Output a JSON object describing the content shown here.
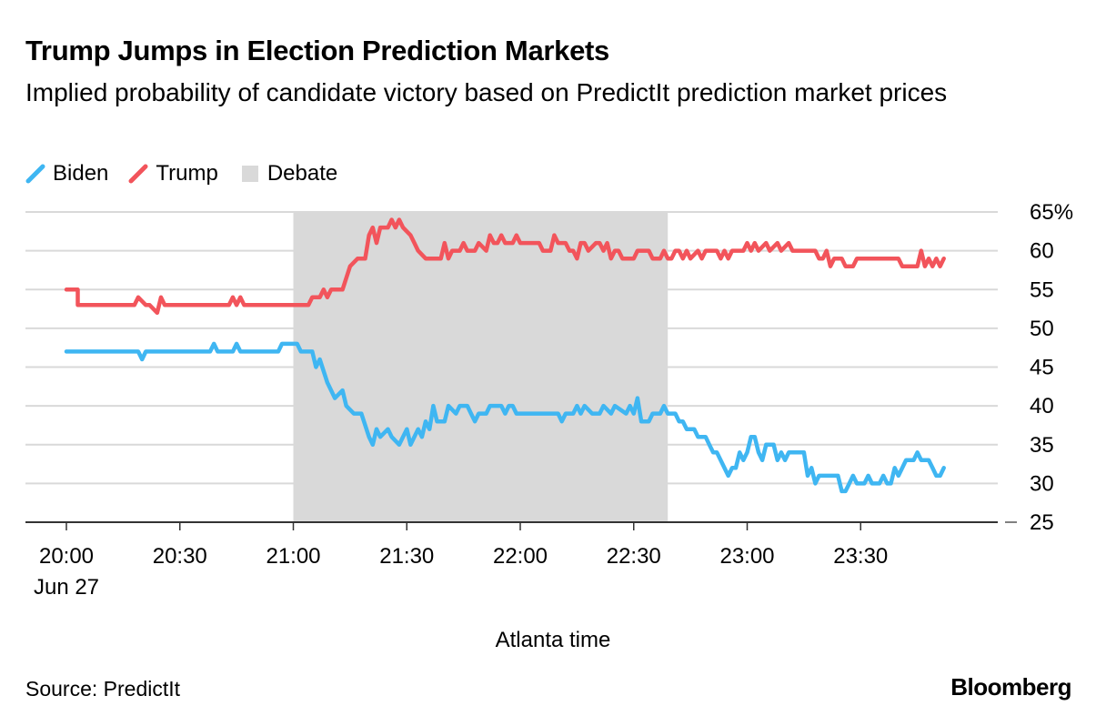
{
  "title": "Trump Jumps in Election Prediction Markets",
  "subtitle": "Implied probability of candidate victory based on PredictIt prediction market prices",
  "legend": {
    "biden": "Biden",
    "trump": "Trump",
    "debate": "Debate"
  },
  "source": "Source: PredictIt",
  "brand": "Bloomberg",
  "colors": {
    "biden": "#3fb6f2",
    "trump": "#f2545b",
    "debate": "#d9d9d9",
    "grid": "#d9d9d9"
  },
  "chart_data": {
    "type": "line",
    "title": "Trump Jumps in Election Prediction Markets",
    "xlabel": "Atlanta time",
    "ylabel": "",
    "xlim": [
      "19:49",
      "24:13"
    ],
    "ylim": [
      25,
      65
    ],
    "x_ticks": [
      "20:00",
      "20:30",
      "21:00",
      "21:30",
      "22:00",
      "22:30",
      "23:00",
      "23:30"
    ],
    "x_tick_sublabel": {
      "20:00": "Jun 27"
    },
    "y_ticks": [
      25,
      30,
      35,
      40,
      45,
      50,
      55,
      60,
      65
    ],
    "y_tick_labels": [
      "25",
      "30",
      "35",
      "40",
      "45",
      "50",
      "55",
      "60",
      "65%"
    ],
    "grid": true,
    "shaded_region": {
      "label": "Debate",
      "start": "21:00",
      "end": "22:39"
    },
    "series": [
      {
        "name": "Biden",
        "color": "#3fb6f2",
        "points": [
          [
            "20:00",
            47
          ],
          [
            "20:19",
            47
          ],
          [
            "20:20",
            46
          ],
          [
            "20:21",
            47
          ],
          [
            "20:38",
            47
          ],
          [
            "20:39",
            48
          ],
          [
            "20:40",
            47
          ],
          [
            "20:44",
            47
          ],
          [
            "20:45",
            48
          ],
          [
            "20:46",
            47
          ],
          [
            "20:56",
            47
          ],
          [
            "20:57",
            48
          ],
          [
            "21:01",
            48
          ],
          [
            "21:02",
            47
          ],
          [
            "21:05",
            47
          ],
          [
            "21:06",
            45
          ],
          [
            "21:07",
            46
          ],
          [
            "21:09",
            43
          ],
          [
            "21:11",
            41
          ],
          [
            "21:13",
            42
          ],
          [
            "21:14",
            40
          ],
          [
            "21:16",
            39
          ],
          [
            "21:18",
            39
          ],
          [
            "21:20",
            36
          ],
          [
            "21:21",
            35
          ],
          [
            "21:22",
            37
          ],
          [
            "21:23",
            36
          ],
          [
            "21:25",
            37
          ],
          [
            "21:26",
            36
          ],
          [
            "21:28",
            35
          ],
          [
            "21:30",
            37
          ],
          [
            "21:31",
            35
          ],
          [
            "21:33",
            37
          ],
          [
            "21:34",
            36
          ],
          [
            "21:35",
            38
          ],
          [
            "21:36",
            37
          ],
          [
            "21:37",
            40
          ],
          [
            "21:38",
            38
          ],
          [
            "21:40",
            38
          ],
          [
            "21:41",
            40
          ],
          [
            "21:43",
            39
          ],
          [
            "21:44",
            40
          ],
          [
            "21:46",
            40
          ],
          [
            "21:47",
            39
          ],
          [
            "21:48",
            38
          ],
          [
            "21:49",
            39
          ],
          [
            "21:51",
            39
          ],
          [
            "21:52",
            40
          ],
          [
            "21:55",
            40
          ],
          [
            "21:56",
            39
          ],
          [
            "21:57",
            40
          ],
          [
            "21:58",
            40
          ],
          [
            "21:59",
            39
          ],
          [
            "22:00",
            39
          ],
          [
            "22:10",
            39
          ],
          [
            "22:11",
            38
          ],
          [
            "22:12",
            39
          ],
          [
            "22:14",
            39
          ],
          [
            "22:15",
            40
          ],
          [
            "22:16",
            39
          ],
          [
            "22:17",
            40
          ],
          [
            "22:19",
            39
          ],
          [
            "22:21",
            39
          ],
          [
            "22:22",
            40
          ],
          [
            "22:24",
            39
          ],
          [
            "22:25",
            40
          ],
          [
            "22:28",
            39
          ],
          [
            "22:29",
            40
          ],
          [
            "22:30",
            39
          ],
          [
            "22:31",
            41
          ],
          [
            "22:32",
            38
          ],
          [
            "22:34",
            38
          ],
          [
            "22:35",
            39
          ],
          [
            "22:37",
            39
          ],
          [
            "22:38",
            40
          ],
          [
            "22:39",
            39
          ],
          [
            "22:41",
            39
          ],
          [
            "22:42",
            38
          ],
          [
            "22:43",
            38
          ],
          [
            "22:44",
            37
          ],
          [
            "22:46",
            37
          ],
          [
            "22:47",
            36
          ],
          [
            "22:49",
            36
          ],
          [
            "22:50",
            35
          ],
          [
            "22:51",
            34
          ],
          [
            "22:52",
            34
          ],
          [
            "22:55",
            31
          ],
          [
            "22:56",
            32
          ],
          [
            "22:57",
            32
          ],
          [
            "22:58",
            34
          ],
          [
            "22:59",
            33
          ],
          [
            "23:00",
            34
          ],
          [
            "23:01",
            36
          ],
          [
            "23:02",
            36
          ],
          [
            "23:03",
            34
          ],
          [
            "23:04",
            33
          ],
          [
            "23:05",
            35
          ],
          [
            "23:07",
            35
          ],
          [
            "23:08",
            33
          ],
          [
            "23:09",
            34
          ],
          [
            "23:10",
            33
          ],
          [
            "23:11",
            34
          ],
          [
            "23:15",
            34
          ],
          [
            "23:16",
            31
          ],
          [
            "23:17",
            32
          ],
          [
            "23:18",
            30
          ],
          [
            "23:19",
            31
          ],
          [
            "23:24",
            31
          ],
          [
            "23:25",
            29
          ],
          [
            "23:26",
            29
          ],
          [
            "23:27",
            30
          ],
          [
            "23:28",
            31
          ],
          [
            "23:29",
            30
          ],
          [
            "23:31",
            30
          ],
          [
            "23:32",
            31
          ],
          [
            "23:33",
            30
          ],
          [
            "23:35",
            30
          ],
          [
            "23:36",
            31
          ],
          [
            "23:37",
            30
          ],
          [
            "23:38",
            30
          ],
          [
            "23:39",
            32
          ],
          [
            "23:40",
            31
          ],
          [
            "23:41",
            32
          ],
          [
            "23:42",
            33
          ],
          [
            "23:44",
            33
          ],
          [
            "23:45",
            34
          ],
          [
            "23:46",
            33
          ],
          [
            "23:48",
            33
          ],
          [
            "23:49",
            32
          ],
          [
            "23:50",
            31
          ],
          [
            "23:51",
            31
          ],
          [
            "23:52",
            32
          ]
        ]
      },
      {
        "name": "Trump",
        "color": "#f2545b",
        "points": [
          [
            "20:00",
            55
          ],
          [
            "20:03",
            55
          ],
          [
            "20:03",
            53
          ],
          [
            "20:18",
            53
          ],
          [
            "20:19",
            54
          ],
          [
            "20:21",
            53
          ],
          [
            "20:22",
            53
          ],
          [
            "20:24",
            52
          ],
          [
            "20:25",
            54
          ],
          [
            "20:26",
            53
          ],
          [
            "20:43",
            53
          ],
          [
            "20:44",
            54
          ],
          [
            "20:45",
            53
          ],
          [
            "20:46",
            54
          ],
          [
            "20:47",
            53
          ],
          [
            "21:04",
            53
          ],
          [
            "21:05",
            54
          ],
          [
            "21:07",
            54
          ],
          [
            "21:08",
            55
          ],
          [
            "21:09",
            54
          ],
          [
            "21:10",
            55
          ],
          [
            "21:13",
            55
          ],
          [
            "21:15",
            58
          ],
          [
            "21:17",
            59
          ],
          [
            "21:19",
            59
          ],
          [
            "21:20",
            62
          ],
          [
            "21:21",
            63
          ],
          [
            "21:22",
            61
          ],
          [
            "21:23",
            63
          ],
          [
            "21:25",
            63
          ],
          [
            "21:26",
            64
          ],
          [
            "21:27",
            63
          ],
          [
            "21:28",
            64
          ],
          [
            "21:29",
            63
          ],
          [
            "21:31",
            62
          ],
          [
            "21:32",
            61
          ],
          [
            "21:33",
            60
          ],
          [
            "21:35",
            59
          ],
          [
            "21:39",
            59
          ],
          [
            "21:40",
            61
          ],
          [
            "21:41",
            59
          ],
          [
            "21:42",
            60
          ],
          [
            "21:44",
            60
          ],
          [
            "21:45",
            61
          ],
          [
            "21:46",
            60
          ],
          [
            "21:48",
            60
          ],
          [
            "21:49",
            61
          ],
          [
            "21:51",
            60
          ],
          [
            "21:52",
            62
          ],
          [
            "21:53",
            61
          ],
          [
            "21:54",
            61
          ],
          [
            "21:55",
            62
          ],
          [
            "21:56",
            61
          ],
          [
            "21:58",
            61
          ],
          [
            "21:59",
            62
          ],
          [
            "22:00",
            61
          ],
          [
            "22:05",
            61
          ],
          [
            "22:06",
            60
          ],
          [
            "22:08",
            60
          ],
          [
            "22:09",
            62
          ],
          [
            "22:10",
            61
          ],
          [
            "22:12",
            61
          ],
          [
            "22:13",
            60
          ],
          [
            "22:14",
            60
          ],
          [
            "22:15",
            59
          ],
          [
            "22:16",
            61
          ],
          [
            "22:17",
            61
          ],
          [
            "22:18",
            60
          ],
          [
            "22:20",
            61
          ],
          [
            "22:21",
            61
          ],
          [
            "22:22",
            60
          ],
          [
            "22:23",
            61
          ],
          [
            "22:24",
            59
          ],
          [
            "22:25",
            60
          ],
          [
            "22:26",
            60
          ],
          [
            "22:27",
            59
          ],
          [
            "22:30",
            59
          ],
          [
            "22:31",
            60
          ],
          [
            "22:34",
            60
          ],
          [
            "22:35",
            59
          ],
          [
            "22:37",
            59
          ],
          [
            "22:38",
            60
          ],
          [
            "22:39",
            59
          ],
          [
            "22:40",
            59
          ],
          [
            "22:41",
            60
          ],
          [
            "22:42",
            60
          ],
          [
            "22:43",
            59
          ],
          [
            "22:44",
            60
          ],
          [
            "22:45",
            59
          ],
          [
            "22:47",
            60
          ],
          [
            "22:48",
            59
          ],
          [
            "22:49",
            60
          ],
          [
            "22:52",
            60
          ],
          [
            "22:53",
            59
          ],
          [
            "22:54",
            60
          ],
          [
            "22:55",
            59
          ],
          [
            "22:56",
            60
          ],
          [
            "22:59",
            60
          ],
          [
            "23:00",
            61
          ],
          [
            "23:01",
            60
          ],
          [
            "23:02",
            61
          ],
          [
            "23:03",
            60
          ],
          [
            "23:05",
            61
          ],
          [
            "23:06",
            60
          ],
          [
            "23:08",
            61
          ],
          [
            "23:09",
            60
          ],
          [
            "23:11",
            61
          ],
          [
            "23:12",
            60
          ],
          [
            "23:18",
            60
          ],
          [
            "23:19",
            59
          ],
          [
            "23:20",
            59
          ],
          [
            "23:21",
            60
          ],
          [
            "23:22",
            58
          ],
          [
            "23:23",
            59
          ],
          [
            "23:25",
            59
          ],
          [
            "23:26",
            58
          ],
          [
            "23:28",
            58
          ],
          [
            "23:29",
            59
          ],
          [
            "23:40",
            59
          ],
          [
            "23:41",
            58
          ],
          [
            "23:45",
            58
          ],
          [
            "23:46",
            60
          ],
          [
            "23:47",
            58
          ],
          [
            "23:48",
            59
          ],
          [
            "23:49",
            58
          ],
          [
            "23:50",
            59
          ],
          [
            "23:51",
            58
          ],
          [
            "23:52",
            59
          ]
        ]
      }
    ]
  }
}
